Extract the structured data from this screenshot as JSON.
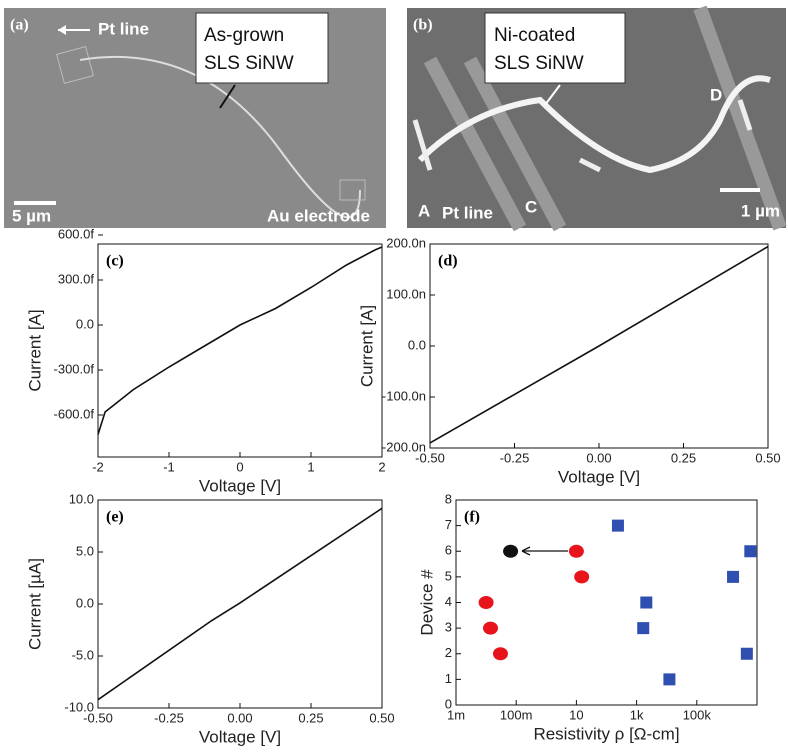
{
  "images": [
    {
      "label": "(a)",
      "pointer": "Pt line",
      "callout": [
        "As-grown",
        "SLS SiNW"
      ],
      "scale": "5 µm",
      "note": "Au electrode"
    },
    {
      "label": "(b)",
      "callout": [
        "Ni-coated",
        "SLS SiNW"
      ],
      "marks": [
        "D",
        "A",
        "C"
      ],
      "pointer": "Pt line",
      "scale": "1 µm"
    }
  ],
  "chart_data": [
    {
      "type": "line",
      "label": "(c)",
      "xlabel": "Voltage [V]",
      "ylabel": "Current [A]",
      "x": [
        -2,
        -1.9,
        -1.5,
        -1,
        -0.5,
        0,
        0.5,
        1,
        1.5,
        1.9,
        2
      ],
      "series": [
        {
          "color": "#111111",
          "values": [
            -7.3e-13,
            -5.8e-13,
            -4.3e-13,
            -2.8e-13,
            -1.4e-13,
            0,
            1.1e-13,
            2.5e-13,
            4e-13,
            5e-13,
            5.2e-13
          ]
        }
      ],
      "xlim": [
        -2,
        2
      ],
      "xticks": [
        -2,
        -1,
        0,
        1,
        2
      ],
      "ylim": [
        -8.8e-13,
        5.4e-13
      ],
      "yticks": [
        {
          "value": -6e-13,
          "label": "-600.0f"
        },
        {
          "value": -3e-13,
          "label": "-300.0f"
        },
        {
          "value": 0,
          "label": "0.0"
        },
        {
          "value": 3e-13,
          "label": "300.0f"
        },
        {
          "value": 6e-13,
          "label": "600.0f"
        }
      ]
    },
    {
      "type": "line",
      "label": "(d)",
      "xlabel": "Voltage [V]",
      "ylabel": "Current [A]",
      "x": [
        -0.5,
        0,
        0.5
      ],
      "series": [
        {
          "color": "#111111",
          "values": [
            -1.9e-07,
            0,
            1.95e-07
          ]
        }
      ],
      "xlim": [
        -0.5,
        0.5
      ],
      "xticks": [
        {
          "value": -0.5,
          "label": "-0.50"
        },
        {
          "value": -0.25,
          "label": "-0.25"
        },
        {
          "value": 0,
          "label": "0.00"
        },
        {
          "value": 0.25,
          "label": "0.25"
        },
        {
          "value": 0.5,
          "label": "0.50"
        }
      ],
      "ylim": [
        -2e-07,
        2e-07
      ],
      "yticks": [
        {
          "value": -2e-07,
          "label": "-200.0n"
        },
        {
          "value": -1e-07,
          "label": "-100.0n"
        },
        {
          "value": 0,
          "label": "0.0"
        },
        {
          "value": 1e-07,
          "label": "100.0n"
        },
        {
          "value": 2e-07,
          "label": "200.0n"
        }
      ]
    },
    {
      "type": "line",
      "label": "(e)",
      "xlabel": "Voltage [V]",
      "ylabel": "Current [µA]",
      "x": [
        -0.5,
        -0.1,
        0,
        0.5
      ],
      "series": [
        {
          "color": "#111111",
          "values": [
            -9.2,
            -1.6,
            0.1,
            9.2
          ]
        }
      ],
      "xlim": [
        -0.5,
        0.5
      ],
      "xticks": [
        {
          "value": -0.5,
          "label": "-0.50"
        },
        {
          "value": -0.25,
          "label": "-0.25"
        },
        {
          "value": 0,
          "label": "0.00"
        },
        {
          "value": 0.25,
          "label": "0.25"
        },
        {
          "value": 0.5,
          "label": "0.50"
        }
      ],
      "ylim": [
        -10,
        10
      ],
      "yticks": [
        {
          "value": -10,
          "label": "-10.0"
        },
        {
          "value": -5,
          "label": "-5.0"
        },
        {
          "value": 0,
          "label": "0.0"
        },
        {
          "value": 5,
          "label": "5.0"
        },
        {
          "value": 10,
          "label": "10.0"
        }
      ]
    },
    {
      "type": "scatter",
      "label": "(f)",
      "xlabel": "Resistivity ρ [Ω-cm]",
      "ylabel": "Device #",
      "xscale": "log",
      "series": [
        {
          "color": "#e8141c",
          "marker": "circle",
          "x": [
            0.01,
            0.014,
            0.03,
            10,
            15
          ],
          "values": [
            4,
            3,
            2,
            6,
            5
          ]
        },
        {
          "color": "#111111",
          "marker": "circle",
          "x": [
            0.065
          ],
          "values": [
            6
          ]
        },
        {
          "color": "#2f4fb0",
          "marker": "square",
          "x": [
            240,
            1660,
            2100,
            12300,
            1600000,
            4600000,
            6000000
          ],
          "values": [
            7,
            3,
            4,
            1,
            5,
            2,
            6
          ]
        }
      ],
      "xlim": [
        0.001,
        10000000
      ],
      "xticks": [
        {
          "value": 0.001,
          "label": "1m"
        },
        {
          "value": 0.1,
          "label": "100m"
        },
        10,
        {
          "value": 1000,
          "label": "1k"
        },
        {
          "value": 100000,
          "label": "100k"
        }
      ],
      "ylim": [
        0,
        8
      ],
      "yticks": [
        0,
        1,
        2,
        3,
        4,
        5,
        6,
        7,
        8
      ]
    }
  ]
}
